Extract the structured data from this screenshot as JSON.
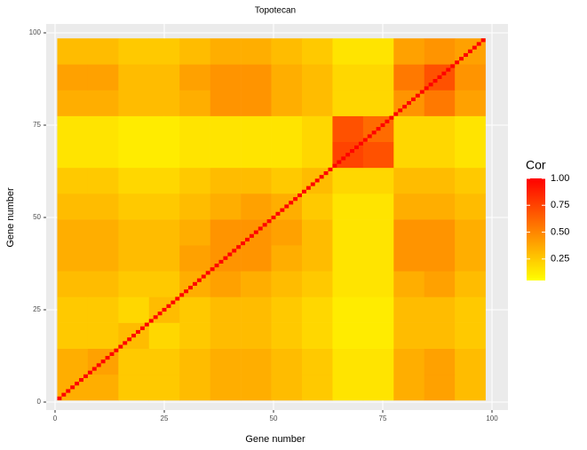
{
  "chart_data": {
    "type": "heatmap",
    "title": "Topotecan",
    "x_label": "Gene number",
    "y_label": "Gene number",
    "xlim": [
      0,
      100
    ],
    "ylim": [
      0,
      100
    ],
    "xticks": [
      0,
      25,
      50,
      75,
      100
    ],
    "yticks": [
      0,
      25,
      50,
      75,
      100
    ],
    "bins": [
      0.5,
      7.5,
      14.5,
      21.5,
      28.5,
      35.5,
      42.5,
      49.5,
      56.5,
      63.5,
      70.5,
      77.5,
      84.5,
      91.5,
      98.5
    ],
    "z": [
      [
        0.35,
        0.35,
        0.25,
        0.25,
        0.3,
        0.35,
        0.35,
        0.3,
        0.25,
        0.15,
        0.15,
        0.35,
        0.4,
        0.3
      ],
      [
        0.35,
        0.4,
        0.25,
        0.25,
        0.3,
        0.35,
        0.35,
        0.3,
        0.25,
        0.15,
        0.15,
        0.35,
        0.4,
        0.3
      ],
      [
        0.25,
        0.25,
        0.3,
        0.2,
        0.25,
        0.3,
        0.3,
        0.25,
        0.2,
        0.12,
        0.12,
        0.3,
        0.3,
        0.25
      ],
      [
        0.25,
        0.25,
        0.2,
        0.3,
        0.25,
        0.3,
        0.3,
        0.25,
        0.2,
        0.12,
        0.12,
        0.3,
        0.3,
        0.25
      ],
      [
        0.3,
        0.3,
        0.25,
        0.25,
        0.35,
        0.4,
        0.35,
        0.3,
        0.25,
        0.15,
        0.15,
        0.35,
        0.4,
        0.3
      ],
      [
        0.35,
        0.35,
        0.3,
        0.3,
        0.4,
        0.45,
        0.45,
        0.35,
        0.3,
        0.15,
        0.15,
        0.45,
        0.45,
        0.35
      ],
      [
        0.35,
        0.35,
        0.3,
        0.3,
        0.35,
        0.45,
        0.45,
        0.4,
        0.3,
        0.15,
        0.15,
        0.45,
        0.45,
        0.35
      ],
      [
        0.3,
        0.3,
        0.25,
        0.25,
        0.3,
        0.35,
        0.4,
        0.35,
        0.25,
        0.15,
        0.15,
        0.35,
        0.35,
        0.3
      ],
      [
        0.25,
        0.25,
        0.2,
        0.2,
        0.25,
        0.3,
        0.3,
        0.25,
        0.3,
        0.2,
        0.2,
        0.3,
        0.3,
        0.25
      ],
      [
        0.15,
        0.15,
        0.12,
        0.12,
        0.15,
        0.15,
        0.15,
        0.15,
        0.2,
        0.75,
        0.7,
        0.2,
        0.2,
        0.15
      ],
      [
        0.15,
        0.15,
        0.12,
        0.12,
        0.15,
        0.15,
        0.15,
        0.15,
        0.2,
        0.7,
        0.6,
        0.2,
        0.2,
        0.15
      ],
      [
        0.35,
        0.35,
        0.3,
        0.3,
        0.35,
        0.45,
        0.45,
        0.35,
        0.3,
        0.2,
        0.2,
        0.45,
        0.55,
        0.4
      ],
      [
        0.4,
        0.4,
        0.3,
        0.3,
        0.4,
        0.45,
        0.45,
        0.35,
        0.3,
        0.2,
        0.2,
        0.55,
        0.7,
        0.45
      ],
      [
        0.3,
        0.3,
        0.25,
        0.25,
        0.3,
        0.35,
        0.35,
        0.3,
        0.25,
        0.15,
        0.15,
        0.4,
        0.45,
        0.4
      ]
    ],
    "diagonal": {
      "genes": [
        1,
        2,
        3,
        4,
        5,
        6,
        7,
        8,
        9,
        10,
        11,
        12,
        13,
        14,
        15,
        16,
        17,
        18,
        19,
        20,
        21,
        22,
        23,
        24,
        25,
        26,
        27,
        28,
        29,
        30,
        31,
        32,
        33,
        34,
        35,
        36,
        37,
        38,
        39,
        40,
        41,
        42,
        43,
        44,
        45,
        46,
        47,
        48,
        49,
        50,
        51,
        52,
        53,
        54,
        55,
        56,
        57,
        58,
        59,
        60,
        61,
        62,
        63,
        64,
        65,
        66,
        67,
        68,
        69,
        70,
        71,
        72,
        73,
        74,
        75,
        76,
        77,
        78,
        79,
        80,
        81,
        82,
        83,
        84,
        85,
        86,
        87,
        88,
        89,
        90,
        91,
        92,
        93,
        94,
        95,
        96,
        97,
        98
      ],
      "values": [
        1,
        1,
        1,
        1,
        1,
        1,
        1,
        1,
        1,
        1,
        1,
        1,
        1,
        1,
        1,
        1,
        1,
        1,
        1,
        1,
        1,
        1,
        1,
        1,
        1,
        1,
        1,
        1,
        1,
        1,
        1,
        1,
        1,
        1,
        1,
        1,
        1,
        1,
        1,
        1,
        1,
        1,
        1,
        1,
        1,
        1,
        1,
        1,
        1,
        1,
        1,
        1,
        1,
        1,
        1,
        1,
        1,
        1,
        1,
        1,
        1,
        1,
        1,
        1,
        1,
        1,
        1,
        1,
        1,
        1,
        1,
        1,
        1,
        1,
        1,
        1,
        1,
        1,
        1,
        1,
        1,
        1,
        1,
        1,
        1,
        1,
        1,
        1,
        1,
        1,
        1,
        1,
        1,
        1,
        1,
        1,
        1,
        1
      ]
    },
    "colorbar": {
      "title": "Cor",
      "colors": [
        "#ffff00",
        "#ff0000"
      ],
      "limits": [
        0.05,
        1
      ],
      "ticks": [
        0.25,
        {
          "value": 0.5,
          "label": "0.50"
        },
        0.75,
        {
          "value": 1,
          "label": "1.00"
        }
      ]
    },
    "grid": true
  }
}
